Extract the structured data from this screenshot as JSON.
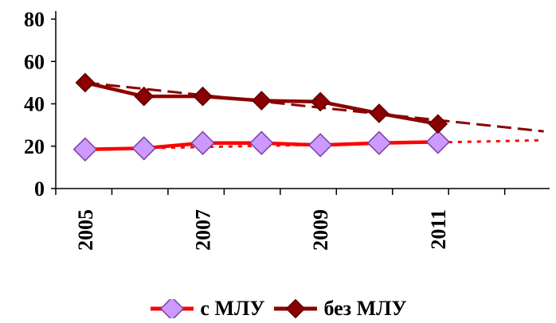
{
  "chart_data": {
    "type": "line",
    "x": [
      "2005",
      "2006",
      "2007",
      "2008",
      "2009",
      "2010",
      "2011"
    ],
    "x_tick_labels": [
      "2005",
      "",
      "2007",
      "",
      "2009",
      "",
      "2011"
    ],
    "x_range": [
      2005,
      2012.9
    ],
    "ylim": [
      0,
      80
    ],
    "y_ticks": [
      "0",
      "20",
      "40",
      "60",
      "80"
    ],
    "grid": false,
    "legend_placement": "bottom",
    "series": [
      {
        "name": "с МЛУ",
        "values": [
          18.5,
          19,
          21.5,
          21.5,
          20.5,
          21.5,
          22
        ],
        "line_color": "#ff0000",
        "marker_fill": "#cc99ff",
        "marker_stroke": "#7a3fa0",
        "trend": {
          "type": "linear",
          "style": "dotted",
          "color": "#ff0000",
          "from": [
            2005,
            18.5
          ],
          "to": [
            2012.8,
            22.8
          ]
        }
      },
      {
        "name": "без МЛУ",
        "values": [
          50,
          43.5,
          43.5,
          41.5,
          41,
          35.5,
          30.5
        ],
        "line_color": "#8b0000",
        "marker_fill": "#8b0000",
        "marker_stroke": "#5a0000",
        "trend": {
          "type": "linear",
          "style": "dashed",
          "color": "#8b0000",
          "from": [
            2005,
            50
          ],
          "to": [
            2012.8,
            27
          ]
        }
      }
    ]
  }
}
